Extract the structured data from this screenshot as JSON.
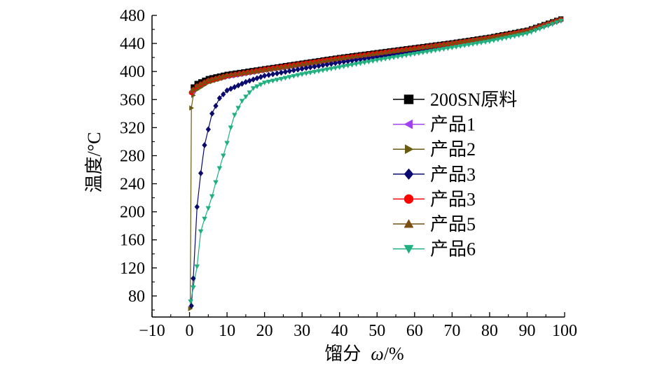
{
  "chart_data": {
    "type": "line",
    "title": "",
    "xlabel": "馏分",
    "xlabel_symbol": "ω",
    "xlabel_unit": "/%",
    "ylabel": "温度/°C",
    "xlim": [
      -10,
      100
    ],
    "ylim": [
      50,
      480
    ],
    "x_ticks": [
      -10,
      0,
      10,
      20,
      30,
      40,
      50,
      60,
      70,
      80,
      90,
      100
    ],
    "x_tick_labels": [
      "−10",
      "0",
      "10",
      "20",
      "30",
      "40",
      "50",
      "60",
      "70",
      "80",
      "90",
      "100"
    ],
    "y_ticks": [
      80,
      120,
      160,
      200,
      240,
      280,
      320,
      360,
      400,
      440,
      480
    ],
    "y_tick_labels": [
      "80",
      "120",
      "160",
      "200",
      "240",
      "280",
      "320",
      "360",
      "400",
      "440",
      "480"
    ],
    "grid": false,
    "legend_position": "center-right",
    "series": [
      {
        "name": "200SN原料",
        "color": "#000000",
        "marker": "square",
        "points": [
          [
            1,
            378
          ],
          [
            2,
            383
          ],
          [
            5,
            390
          ],
          [
            10,
            396
          ],
          [
            20,
            404
          ],
          [
            30,
            412
          ],
          [
            40,
            420
          ],
          [
            50,
            427
          ],
          [
            60,
            434
          ],
          [
            70,
            441
          ],
          [
            80,
            449
          ],
          [
            90,
            459
          ],
          [
            99,
            475
          ]
        ]
      },
      {
        "name": "产品1",
        "color": "#a040f0",
        "marker": "triangle-left",
        "points": [
          [
            0.5,
            368
          ],
          [
            1,
            372
          ],
          [
            2,
            378
          ],
          [
            5,
            386
          ],
          [
            10,
            393
          ],
          [
            20,
            402
          ],
          [
            30,
            410
          ],
          [
            40,
            418
          ],
          [
            50,
            425
          ],
          [
            60,
            432
          ],
          [
            70,
            440
          ],
          [
            80,
            448
          ],
          [
            90,
            458
          ],
          [
            99,
            474
          ]
        ]
      },
      {
        "name": "产品2",
        "color": "#6a5a10",
        "marker": "triangle-right",
        "points": [
          [
            0.2,
            62
          ],
          [
            0.5,
            348
          ],
          [
            1,
            366
          ],
          [
            2,
            374
          ],
          [
            5,
            384
          ],
          [
            10,
            392
          ],
          [
            20,
            401
          ],
          [
            30,
            409
          ],
          [
            40,
            417
          ],
          [
            50,
            424
          ],
          [
            60,
            431
          ],
          [
            70,
            439
          ],
          [
            80,
            447
          ],
          [
            90,
            457
          ],
          [
            99,
            474
          ]
        ]
      },
      {
        "name": "产品3",
        "color": "#0a0a6e",
        "marker": "diamond",
        "points": [
          [
            0.5,
            66
          ],
          [
            1,
            105
          ],
          [
            2,
            207
          ],
          [
            3,
            255
          ],
          [
            4,
            295
          ],
          [
            6,
            340
          ],
          [
            8,
            362
          ],
          [
            10,
            373
          ],
          [
            15,
            385
          ],
          [
            20,
            394
          ],
          [
            30,
            404
          ],
          [
            40,
            413
          ],
          [
            50,
            421
          ],
          [
            60,
            429
          ],
          [
            70,
            437
          ],
          [
            80,
            446
          ],
          [
            90,
            456
          ],
          [
            99,
            473
          ]
        ]
      },
      {
        "name": "产品3",
        "color": "#ff0000",
        "marker": "circle",
        "points": [
          [
            0.5,
            370
          ],
          [
            1,
            374
          ],
          [
            2,
            379
          ],
          [
            5,
            387
          ],
          [
            10,
            394
          ],
          [
            20,
            403
          ],
          [
            30,
            411
          ],
          [
            40,
            419
          ],
          [
            50,
            426
          ],
          [
            60,
            433
          ],
          [
            70,
            440
          ],
          [
            80,
            448
          ],
          [
            90,
            458
          ],
          [
            99,
            474
          ]
        ]
      },
      {
        "name": "产品5",
        "color": "#7a4f10",
        "marker": "triangle-up",
        "points": [
          [
            0.5,
            372
          ],
          [
            1,
            375
          ],
          [
            2,
            380
          ],
          [
            5,
            388
          ],
          [
            10,
            395
          ],
          [
            20,
            403
          ],
          [
            30,
            411
          ],
          [
            40,
            419
          ],
          [
            50,
            426
          ],
          [
            60,
            433
          ],
          [
            70,
            441
          ],
          [
            80,
            449
          ],
          [
            90,
            459
          ],
          [
            99,
            475
          ]
        ]
      },
      {
        "name": "产品6",
        "color": "#20b080",
        "marker": "triangle-down",
        "points": [
          [
            0.3,
            72
          ],
          [
            1,
            92
          ],
          [
            2,
            122
          ],
          [
            3,
            172
          ],
          [
            4,
            190
          ],
          [
            5,
            205
          ],
          [
            6,
            222
          ],
          [
            7,
            242
          ],
          [
            8,
            262
          ],
          [
            9,
            280
          ],
          [
            10,
            298
          ],
          [
            11,
            320
          ],
          [
            12,
            338
          ],
          [
            14,
            358
          ],
          [
            17,
            376
          ],
          [
            20,
            384
          ],
          [
            30,
            396
          ],
          [
            40,
            406
          ],
          [
            50,
            416
          ],
          [
            60,
            425
          ],
          [
            70,
            434
          ],
          [
            80,
            443
          ],
          [
            90,
            454
          ],
          [
            99,
            472
          ]
        ]
      }
    ],
    "curve_colors": {
      "产品3": "#2a2ad8",
      "产品2": "#8a8a1a"
    }
  }
}
